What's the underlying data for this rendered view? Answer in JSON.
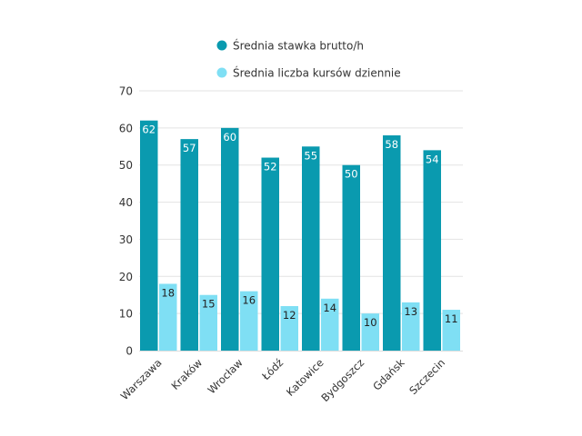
{
  "chart_data": {
    "type": "bar",
    "categories": [
      "Warszawa",
      "Kraków",
      "Wrocław",
      "Łódź",
      "Katowice",
      "Bydgoszcz",
      "Gdańsk",
      "Szczecin"
    ],
    "series": [
      {
        "name": "Średnia stawka brutto/h",
        "values": [
          62,
          57,
          60,
          52,
          55,
          50,
          58,
          54
        ],
        "color": "#0a9aaf"
      },
      {
        "name": "Średnia liczba kursów dziennie",
        "values": [
          18,
          15,
          16,
          12,
          14,
          10,
          13,
          11
        ],
        "color": "#7fdff4"
      }
    ],
    "ylim": [
      0,
      70
    ],
    "yticks": [
      0,
      10,
      20,
      30,
      40,
      50,
      60,
      70
    ],
    "grid": true,
    "legend": "top",
    "data_labels": true
  }
}
